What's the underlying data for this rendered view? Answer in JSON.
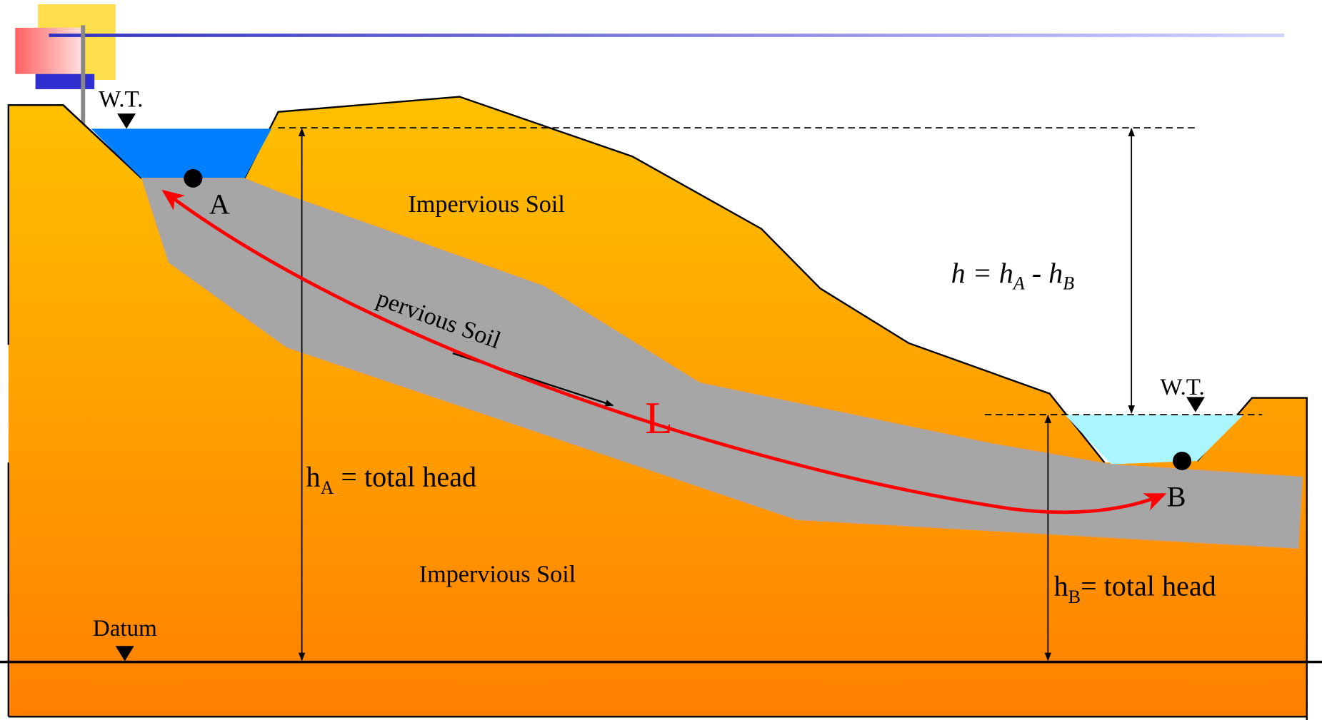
{
  "labels": {
    "wt_left": "W.T.",
    "wt_right": "W.T.",
    "point_a": "A",
    "point_b": "B",
    "impervious_top": "Impervious Soil",
    "impervious_bottom": "Impervious Soil",
    "pervious": "pervious Soil",
    "length": "L",
    "head_difference": [
      "h = h",
      "A",
      " - h",
      "B"
    ],
    "head_a": [
      "h",
      "A",
      " = total head"
    ],
    "head_b": [
      "h",
      "B",
      "= total head"
    ],
    "datum": "Datum"
  }
}
